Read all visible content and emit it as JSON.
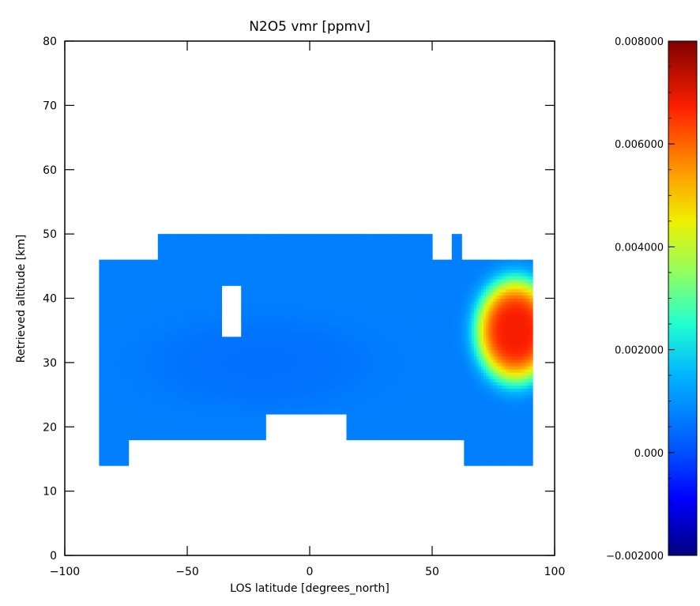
{
  "chart_data": {
    "type": "heatmap",
    "title": "N2O5 vmr [ppmv]",
    "xlabel": "LOS latitude [degrees_north]",
    "ylabel": "Retrieved altitude [km]",
    "xlim": [
      -100,
      100
    ],
    "ylim": [
      0,
      80
    ],
    "xticks": [
      -100,
      -50,
      0,
      50,
      100
    ],
    "xtick_labels": [
      "−100",
      "−50",
      "0",
      "50",
      "100"
    ],
    "yticks": [
      0,
      10,
      20,
      30,
      40,
      50,
      60,
      70,
      80
    ],
    "ytick_labels": [
      "0",
      "10",
      "20",
      "30",
      "40",
      "50",
      "60",
      "70",
      "80"
    ],
    "colorbar": {
      "range": [
        -0.002,
        0.008
      ],
      "ticks": [
        -0.002,
        0.0,
        0.002,
        0.004,
        0.006,
        0.008
      ],
      "tick_labels": [
        "−0.002000",
        "0.000",
        "0.002000",
        "0.004000",
        "0.006000",
        "0.008000"
      ],
      "colormap": "rainbow (dark blue to dark red)"
    },
    "data_regions": [
      {
        "lat": [
          -86,
          -74
        ],
        "alt": [
          14,
          18
        ]
      },
      {
        "lat": [
          -86,
          -18
        ],
        "alt": [
          18,
          22
        ]
      },
      {
        "lat": [
          15,
          91
        ],
        "alt": [
          18,
          22
        ]
      },
      {
        "lat": [
          -86,
          91
        ],
        "alt": [
          22,
          46
        ]
      },
      {
        "lat": [
          -62,
          50
        ],
        "alt": [
          46,
          50
        ]
      },
      {
        "lat": [
          58,
          62
        ],
        "alt": [
          46,
          50
        ]
      },
      {
        "lat": [
          63,
          91
        ],
        "alt": [
          14,
          18
        ]
      }
    ],
    "gap_regions": [
      {
        "lat": [
          -36,
          -28
        ],
        "alt": [
          34,
          42
        ]
      }
    ],
    "background_value": 0.0007,
    "hotspots": [
      {
        "lat": 84,
        "alt": 35,
        "value": 0.0068,
        "spread_lat": 14,
        "spread_alt": 7
      },
      {
        "lat": -20,
        "alt": 30,
        "value": 0.0005,
        "spread_lat": 40,
        "spread_alt": 6
      }
    ]
  }
}
